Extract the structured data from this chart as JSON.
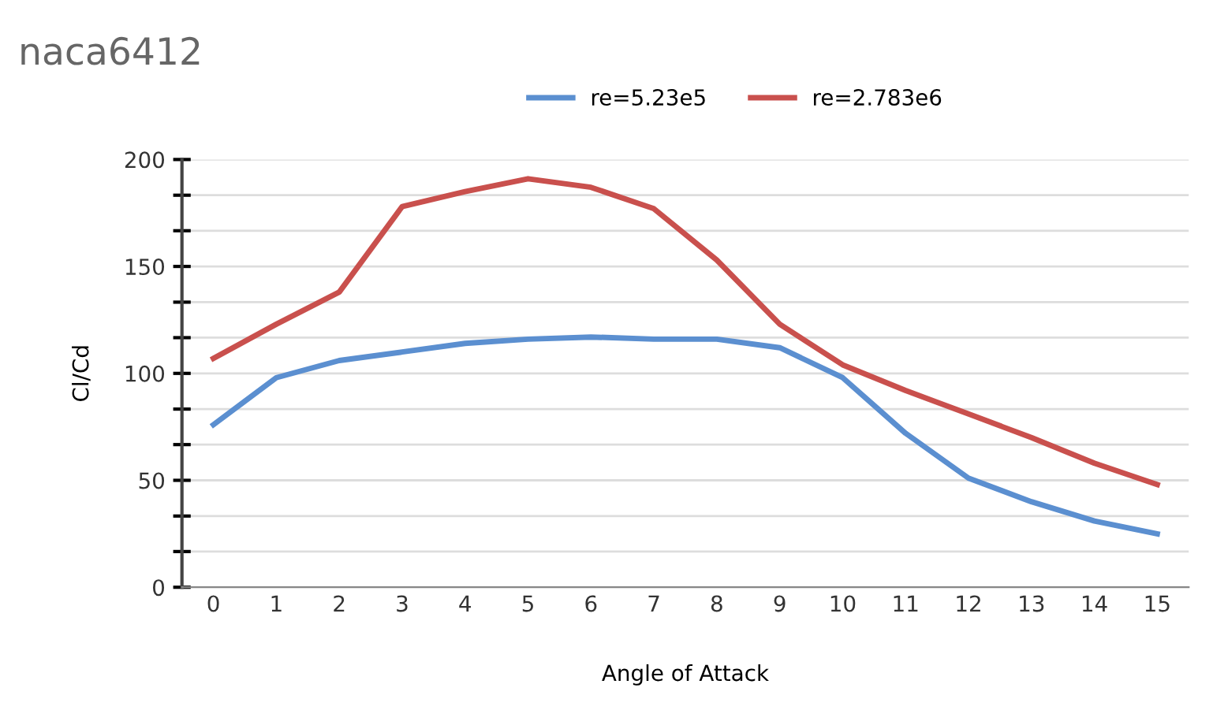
{
  "chart_data": {
    "type": "line",
    "title": "naca6412",
    "xlabel": "Angle of Attack",
    "ylabel": "Cl/Cd",
    "categories": [
      "0",
      "1",
      "2",
      "3",
      "4",
      "5",
      "6",
      "7",
      "8",
      "9",
      "10",
      "11",
      "12",
      "13",
      "14",
      "15"
    ],
    "series": [
      {
        "name": "re=5.23e5",
        "color": "#5b8fd0",
        "values": [
          76,
          98,
          106,
          110,
          114,
          116,
          117,
          116,
          116,
          112,
          98,
          72,
          51,
          40,
          31,
          25
        ]
      },
      {
        "name": "re=2.783e6",
        "color": "#c9504d",
        "values": [
          107,
          123,
          138,
          178,
          185,
          191,
          187,
          177,
          153,
          123,
          104,
          92,
          81,
          70,
          58,
          48
        ]
      }
    ],
    "ylim": [
      0,
      200
    ],
    "yticks": [
      0,
      {
        "value": 16.7,
        "label": null
      },
      {
        "value": 33.3,
        "label": null
      },
      50,
      {
        "value": 66.7,
        "label": null
      },
      {
        "value": 83.3,
        "label": null
      },
      100,
      {
        "value": 116.7,
        "label": null
      },
      {
        "value": 133.3,
        "label": null
      },
      150,
      {
        "value": 166.7,
        "label": null
      },
      {
        "value": 183.3,
        "label": null
      },
      200
    ],
    "grid": "y",
    "legend": "top",
    "marker": "none",
    "line_style": "solid"
  }
}
